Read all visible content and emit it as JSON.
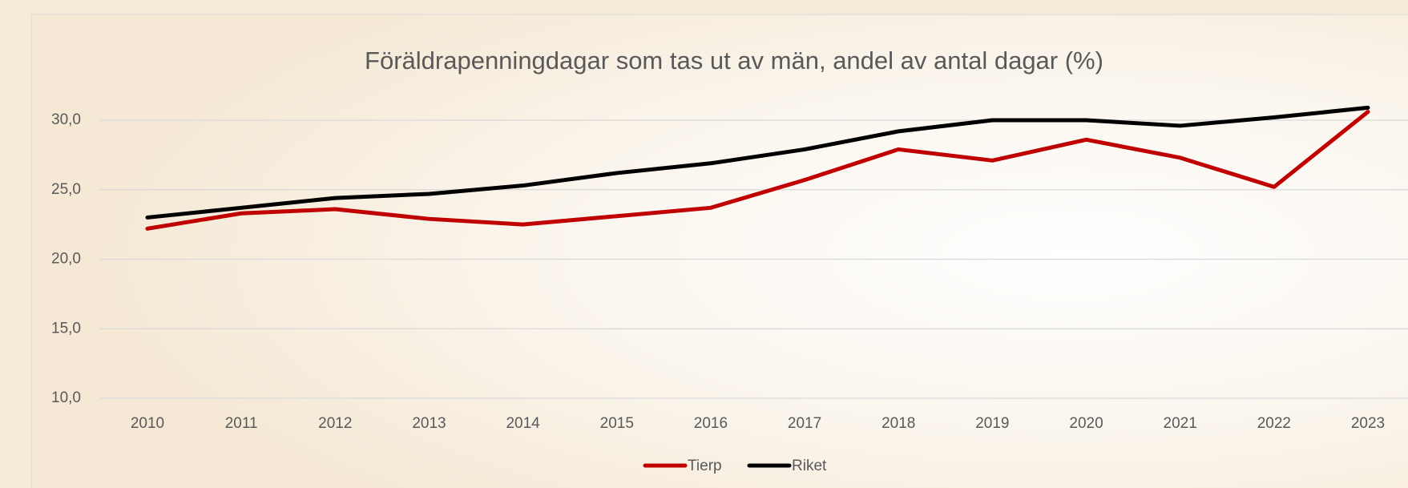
{
  "chart_data": {
    "type": "line",
    "title": "Föräldrapenningdagar som tas ut av män, andel av antal dagar (%)",
    "categories": [
      "2010",
      "2011",
      "2012",
      "2013",
      "2014",
      "2015",
      "2016",
      "2017",
      "2018",
      "2019",
      "2020",
      "2021",
      "2022",
      "2023"
    ],
    "series": [
      {
        "name": "Tierp",
        "color": "#c00000",
        "values": [
          22.2,
          23.3,
          23.6,
          22.9,
          22.5,
          23.1,
          23.7,
          25.7,
          27.9,
          27.1,
          28.6,
          27.3,
          25.2,
          30.6
        ]
      },
      {
        "name": "Riket",
        "color": "#000000",
        "values": [
          23.0,
          23.7,
          24.4,
          24.7,
          25.3,
          26.2,
          26.9,
          27.9,
          29.2,
          30.0,
          30.0,
          29.6,
          30.2,
          30.9
        ]
      }
    ],
    "ylim": [
      10,
      31.2
    ],
    "yticks": [
      {
        "value": 10,
        "label": "10,0"
      },
      {
        "value": 15,
        "label": "15,0"
      },
      {
        "value": 20,
        "label": "20,0"
      },
      {
        "value": 25,
        "label": "25,0"
      },
      {
        "value": 30,
        "label": "30,0"
      }
    ],
    "grid": true,
    "legend": "bottom"
  }
}
